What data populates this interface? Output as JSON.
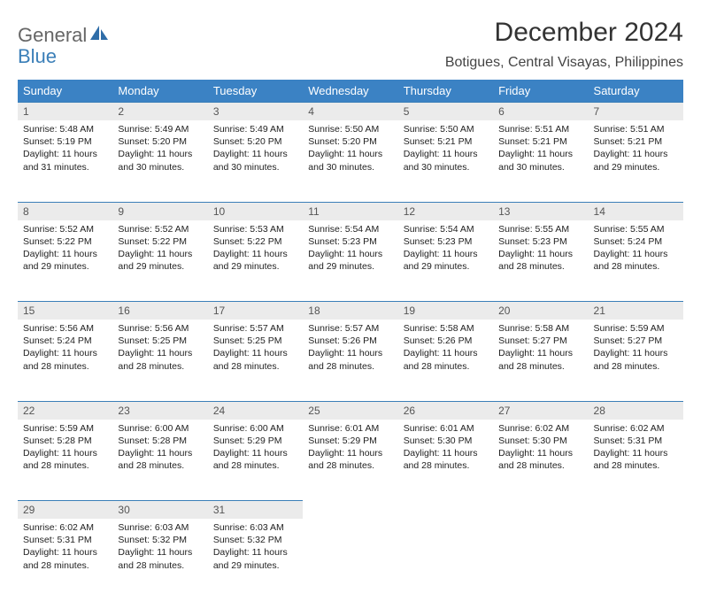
{
  "brand": {
    "part1": "General",
    "part2": "Blue"
  },
  "title": "December 2024",
  "subtitle": "Botigues, Central Visayas, Philippines",
  "daysOfWeek": [
    "Sunday",
    "Monday",
    "Tuesday",
    "Wednesday",
    "Thursday",
    "Friday",
    "Saturday"
  ],
  "header_bg": "#3b82c4",
  "header_fg": "#ffffff",
  "daynum_bg": "#ebebeb",
  "border_color": "#3b7fb8",
  "weeks": [
    [
      {
        "n": "1",
        "sr": "5:48 AM",
        "ss": "5:19 PM",
        "dl": "11 hours and 31 minutes."
      },
      {
        "n": "2",
        "sr": "5:49 AM",
        "ss": "5:20 PM",
        "dl": "11 hours and 30 minutes."
      },
      {
        "n": "3",
        "sr": "5:49 AM",
        "ss": "5:20 PM",
        "dl": "11 hours and 30 minutes."
      },
      {
        "n": "4",
        "sr": "5:50 AM",
        "ss": "5:20 PM",
        "dl": "11 hours and 30 minutes."
      },
      {
        "n": "5",
        "sr": "5:50 AM",
        "ss": "5:21 PM",
        "dl": "11 hours and 30 minutes."
      },
      {
        "n": "6",
        "sr": "5:51 AM",
        "ss": "5:21 PM",
        "dl": "11 hours and 30 minutes."
      },
      {
        "n": "7",
        "sr": "5:51 AM",
        "ss": "5:21 PM",
        "dl": "11 hours and 29 minutes."
      }
    ],
    [
      {
        "n": "8",
        "sr": "5:52 AM",
        "ss": "5:22 PM",
        "dl": "11 hours and 29 minutes."
      },
      {
        "n": "9",
        "sr": "5:52 AM",
        "ss": "5:22 PM",
        "dl": "11 hours and 29 minutes."
      },
      {
        "n": "10",
        "sr": "5:53 AM",
        "ss": "5:22 PM",
        "dl": "11 hours and 29 minutes."
      },
      {
        "n": "11",
        "sr": "5:54 AM",
        "ss": "5:23 PM",
        "dl": "11 hours and 29 minutes."
      },
      {
        "n": "12",
        "sr": "5:54 AM",
        "ss": "5:23 PM",
        "dl": "11 hours and 29 minutes."
      },
      {
        "n": "13",
        "sr": "5:55 AM",
        "ss": "5:23 PM",
        "dl": "11 hours and 28 minutes."
      },
      {
        "n": "14",
        "sr": "5:55 AM",
        "ss": "5:24 PM",
        "dl": "11 hours and 28 minutes."
      }
    ],
    [
      {
        "n": "15",
        "sr": "5:56 AM",
        "ss": "5:24 PM",
        "dl": "11 hours and 28 minutes."
      },
      {
        "n": "16",
        "sr": "5:56 AM",
        "ss": "5:25 PM",
        "dl": "11 hours and 28 minutes."
      },
      {
        "n": "17",
        "sr": "5:57 AM",
        "ss": "5:25 PM",
        "dl": "11 hours and 28 minutes."
      },
      {
        "n": "18",
        "sr": "5:57 AM",
        "ss": "5:26 PM",
        "dl": "11 hours and 28 minutes."
      },
      {
        "n": "19",
        "sr": "5:58 AM",
        "ss": "5:26 PM",
        "dl": "11 hours and 28 minutes."
      },
      {
        "n": "20",
        "sr": "5:58 AM",
        "ss": "5:27 PM",
        "dl": "11 hours and 28 minutes."
      },
      {
        "n": "21",
        "sr": "5:59 AM",
        "ss": "5:27 PM",
        "dl": "11 hours and 28 minutes."
      }
    ],
    [
      {
        "n": "22",
        "sr": "5:59 AM",
        "ss": "5:28 PM",
        "dl": "11 hours and 28 minutes."
      },
      {
        "n": "23",
        "sr": "6:00 AM",
        "ss": "5:28 PM",
        "dl": "11 hours and 28 minutes."
      },
      {
        "n": "24",
        "sr": "6:00 AM",
        "ss": "5:29 PM",
        "dl": "11 hours and 28 minutes."
      },
      {
        "n": "25",
        "sr": "6:01 AM",
        "ss": "5:29 PM",
        "dl": "11 hours and 28 minutes."
      },
      {
        "n": "26",
        "sr": "6:01 AM",
        "ss": "5:30 PM",
        "dl": "11 hours and 28 minutes."
      },
      {
        "n": "27",
        "sr": "6:02 AM",
        "ss": "5:30 PM",
        "dl": "11 hours and 28 minutes."
      },
      {
        "n": "28",
        "sr": "6:02 AM",
        "ss": "5:31 PM",
        "dl": "11 hours and 28 minutes."
      }
    ],
    [
      {
        "n": "29",
        "sr": "6:02 AM",
        "ss": "5:31 PM",
        "dl": "11 hours and 28 minutes."
      },
      {
        "n": "30",
        "sr": "6:03 AM",
        "ss": "5:32 PM",
        "dl": "11 hours and 28 minutes."
      },
      {
        "n": "31",
        "sr": "6:03 AM",
        "ss": "5:32 PM",
        "dl": "11 hours and 29 minutes."
      },
      null,
      null,
      null,
      null
    ]
  ],
  "labels": {
    "sunrise": "Sunrise:",
    "sunset": "Sunset:",
    "daylight": "Daylight:"
  }
}
